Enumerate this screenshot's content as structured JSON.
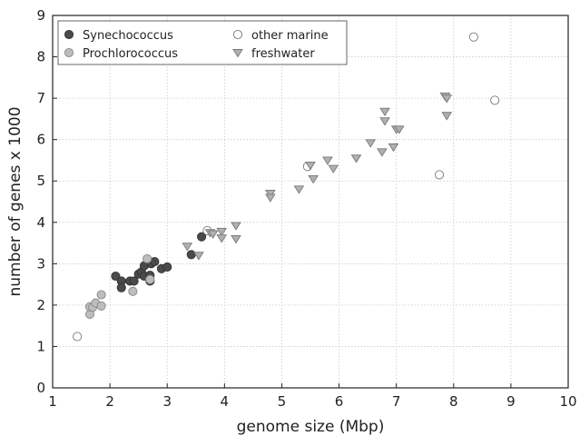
{
  "chart_data": {
    "type": "scatter",
    "xlabel": "genome size (Mbp)",
    "ylabel": "number of genes x 1000",
    "xlim": [
      1,
      10
    ],
    "ylim": [
      0,
      9
    ],
    "xticks": [
      "1",
      "2",
      "3",
      "4",
      "5",
      "6",
      "7",
      "8",
      "9",
      "10"
    ],
    "yticks": [
      "0",
      "1",
      "2",
      "3",
      "4",
      "5",
      "6",
      "7",
      "8",
      "9"
    ],
    "grid": true,
    "legend_position": "top-left",
    "series": [
      {
        "name": "Synechococcus",
        "marker": "circle",
        "fill": "#4a4a4a",
        "stroke": "#333333",
        "points": [
          [
            2.1,
            2.7
          ],
          [
            2.2,
            2.58
          ],
          [
            2.2,
            2.42
          ],
          [
            2.35,
            2.58
          ],
          [
            2.42,
            2.58
          ],
          [
            2.5,
            2.75
          ],
          [
            2.55,
            2.8
          ],
          [
            2.6,
            2.95
          ],
          [
            2.6,
            2.7
          ],
          [
            2.7,
            2.58
          ],
          [
            2.7,
            2.72
          ],
          [
            2.72,
            3.0
          ],
          [
            2.78,
            3.05
          ],
          [
            2.9,
            2.88
          ],
          [
            3.0,
            2.92
          ],
          [
            3.42,
            3.22
          ],
          [
            3.6,
            3.65
          ]
        ]
      },
      {
        "name": "Prochlorococcus",
        "marker": "circle",
        "fill": "#bdbdbd",
        "stroke": "#888888",
        "points": [
          [
            1.65,
            1.78
          ],
          [
            1.65,
            1.96
          ],
          [
            1.7,
            1.95
          ],
          [
            1.75,
            2.05
          ],
          [
            1.85,
            1.98
          ],
          [
            1.85,
            2.25
          ],
          [
            2.4,
            2.33
          ],
          [
            2.65,
            3.12
          ],
          [
            2.7,
            2.62
          ]
        ]
      },
      {
        "name": "other marine",
        "marker": "circle",
        "fill": "#ffffff",
        "stroke": "#777777",
        "points": [
          [
            1.43,
            1.24
          ],
          [
            3.7,
            3.8
          ],
          [
            5.45,
            5.35
          ],
          [
            7.75,
            5.15
          ],
          [
            8.35,
            8.48
          ],
          [
            8.72,
            6.95
          ]
        ]
      },
      {
        "name": "freshwater",
        "marker": "triangle",
        "fill": "#b0b0b0",
        "stroke": "#777777",
        "points": [
          [
            3.35,
            3.42
          ],
          [
            3.55,
            3.2
          ],
          [
            3.75,
            3.75
          ],
          [
            3.8,
            3.72
          ],
          [
            3.95,
            3.78
          ],
          [
            3.95,
            3.62
          ],
          [
            4.2,
            3.92
          ],
          [
            4.2,
            3.6
          ],
          [
            4.8,
            4.7
          ],
          [
            4.8,
            4.6
          ],
          [
            5.3,
            4.8
          ],
          [
            5.5,
            5.38
          ],
          [
            5.55,
            5.05
          ],
          [
            5.8,
            5.5
          ],
          [
            5.9,
            5.3
          ],
          [
            6.3,
            5.55
          ],
          [
            6.55,
            5.92
          ],
          [
            6.75,
            5.7
          ],
          [
            6.8,
            6.45
          ],
          [
            6.8,
            6.68
          ],
          [
            6.95,
            5.82
          ],
          [
            7.0,
            6.25
          ],
          [
            7.05,
            6.25
          ],
          [
            7.85,
            7.05
          ],
          [
            7.88,
            7.0
          ],
          [
            7.88,
            6.58
          ]
        ]
      }
    ]
  }
}
